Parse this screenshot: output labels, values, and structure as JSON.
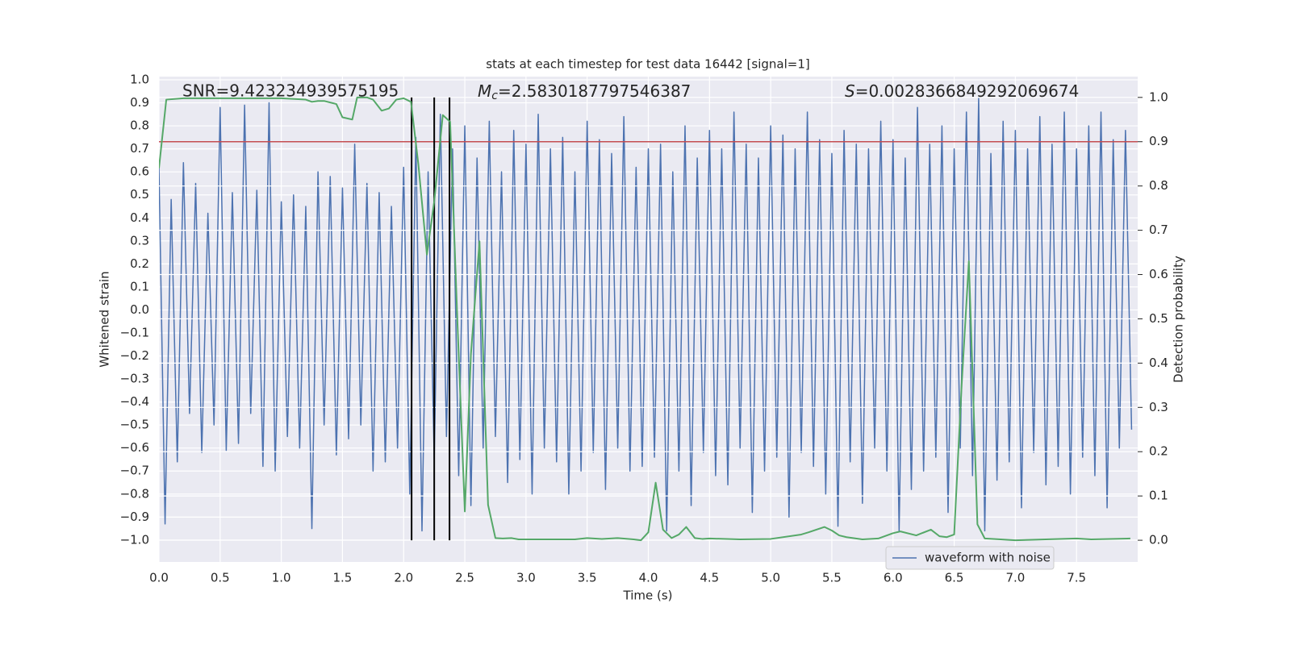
{
  "chart_data": {
    "type": "line",
    "title": "stats at each timestep for test data 16442 [signal=1]",
    "x_label": "Time (s)",
    "y_label": "Whitened strain",
    "y2_label": "Detection probability",
    "snr_annotation": "SNR=9.423234939575195",
    "mc_annotation": {
      "symbol": "M",
      "subscript": "c",
      "text": "=2.5830187797546387"
    },
    "s_annotation": {
      "symbol": "S",
      "text": "=0.0028366849292069674"
    },
    "xlim": [
      0,
      8.0
    ],
    "ylim": [
      -1.095,
      1.014
    ],
    "y2lim": [
      -0.049,
      1.047
    ],
    "grid": true,
    "background": "#eaeaf2",
    "legend_position": "lower right",
    "xticks": [
      {
        "value": 0,
        "label": "0.0"
      },
      {
        "value": 0.5,
        "label": "0.5"
      },
      {
        "value": 1,
        "label": "1.0"
      },
      {
        "value": 1.5,
        "label": "1.5"
      },
      {
        "value": 2,
        "label": "2.0"
      },
      {
        "value": 2.5,
        "label": "2.5"
      },
      {
        "value": 3,
        "label": "3.0"
      },
      {
        "value": 3.5,
        "label": "3.5"
      },
      {
        "value": 4,
        "label": "4.0"
      },
      {
        "value": 4.5,
        "label": "4.5"
      },
      {
        "value": 5,
        "label": "5.0"
      },
      {
        "value": 5.5,
        "label": "5.5"
      },
      {
        "value": 6,
        "label": "6.0"
      },
      {
        "value": 6.5,
        "label": "6.5"
      },
      {
        "value": 7,
        "label": "7.0"
      },
      {
        "value": 7.5,
        "label": "7.5"
      }
    ],
    "yticks": [
      {
        "value": 1,
        "label": "1.0"
      },
      {
        "value": 0.9,
        "label": "0.9"
      },
      {
        "value": 0.8,
        "label": "0.8"
      },
      {
        "value": 0.7,
        "label": "0.7"
      },
      {
        "value": 0.6,
        "label": "0.6"
      },
      {
        "value": 0.5,
        "label": "0.5"
      },
      {
        "value": 0.4,
        "label": "0.4"
      },
      {
        "value": 0.3,
        "label": "0.3"
      },
      {
        "value": 0.2,
        "label": "0.2"
      },
      {
        "value": 0.1,
        "label": "0.1"
      },
      {
        "value": 0,
        "label": "0.0"
      },
      {
        "value": -0.1,
        "label": "−0.1"
      },
      {
        "value": -0.2,
        "label": "−0.2"
      },
      {
        "value": -0.3,
        "label": "−0.3"
      },
      {
        "value": -0.4,
        "label": "−0.4"
      },
      {
        "value": -0.5,
        "label": "−0.5"
      },
      {
        "value": -0.6,
        "label": "−0.6"
      },
      {
        "value": -0.7,
        "label": "−0.7"
      },
      {
        "value": -0.8,
        "label": "−0.8"
      },
      {
        "value": -0.9,
        "label": "−0.9"
      },
      {
        "value": -1,
        "label": "−1.0"
      }
    ],
    "y2ticks": [
      {
        "value": 0,
        "label": "0.0"
      },
      {
        "value": 0.1,
        "label": "0.1"
      },
      {
        "value": 0.2,
        "label": "0.2"
      },
      {
        "value": 0.3,
        "label": "0.3"
      },
      {
        "value": 0.4,
        "label": "0.4"
      },
      {
        "value": 0.5,
        "label": "0.5"
      },
      {
        "value": 0.6,
        "label": "0.6"
      },
      {
        "value": 0.7,
        "label": "0.7"
      },
      {
        "value": 0.8,
        "label": "0.8"
      },
      {
        "value": 0.9,
        "label": "0.9"
      },
      {
        "value": 1,
        "label": "1.0"
      }
    ],
    "hlines": [
      {
        "value": 0.9,
        "axis": "y2",
        "color": "#c44e52"
      }
    ],
    "vlines": {
      "values": [
        2.065,
        2.25,
        2.375
      ],
      "color": "#000000"
    },
    "series": [
      {
        "name": "waveform with noise",
        "color": "#4c72b0",
        "x": [
          0,
          0.05,
          0.1,
          0.15,
          0.2,
          0.25,
          0.3,
          0.35,
          0.4,
          0.45,
          0.5,
          0.55,
          0.6,
          0.65,
          0.7,
          0.75,
          0.8,
          0.85,
          0.9,
          0.95,
          1,
          1.05,
          1.1,
          1.15,
          1.2,
          1.25,
          1.3,
          1.35,
          1.4,
          1.45,
          1.5,
          1.55,
          1.6,
          1.65,
          1.7,
          1.75,
          1.8,
          1.85,
          1.9,
          1.95,
          2,
          2.05,
          2.1,
          2.15,
          2.2,
          2.25,
          2.3,
          2.35,
          2.4,
          2.45,
          2.5,
          2.55,
          2.6,
          2.65,
          2.7,
          2.75,
          2.8,
          2.85,
          2.9,
          2.95,
          3,
          3.05,
          3.1,
          3.15,
          3.2,
          3.25,
          3.3,
          3.35,
          3.4,
          3.45,
          3.5,
          3.55,
          3.6,
          3.65,
          3.7,
          3.75,
          3.8,
          3.85,
          3.9,
          3.95,
          4,
          4.05,
          4.1,
          4.15,
          4.2,
          4.25,
          4.3,
          4.35,
          4.4,
          4.45,
          4.5,
          4.55,
          4.6,
          4.65,
          4.7,
          4.75,
          4.8,
          4.85,
          4.9,
          4.95,
          5,
          5.05,
          5.1,
          5.15,
          5.2,
          5.25,
          5.3,
          5.35,
          5.4,
          5.45,
          5.5,
          5.55,
          5.6,
          5.65,
          5.7,
          5.75,
          5.8,
          5.85,
          5.9,
          5.95,
          6,
          6.05,
          6.1,
          6.15,
          6.2,
          6.25,
          6.3,
          6.35,
          6.4,
          6.45,
          6.5,
          6.55,
          6.6,
          6.65,
          6.7,
          6.75,
          6.8,
          6.85,
          6.9,
          6.95,
          7,
          7.05,
          7.1,
          7.15,
          7.2,
          7.25,
          7.3,
          7.35,
          7.4,
          7.45,
          7.5,
          7.55,
          7.6,
          7.65,
          7.7,
          7.75,
          7.8,
          7.85,
          7.9,
          7.95
        ],
        "values": [
          0.62,
          -0.93,
          0.48,
          -0.66,
          0.64,
          -0.45,
          0.55,
          -0.62,
          0.42,
          -0.5,
          0.88,
          -0.61,
          0.51,
          -0.58,
          0.89,
          -0.45,
          0.52,
          -0.68,
          0.9,
          -0.7,
          0.47,
          -0.55,
          0.5,
          -0.6,
          0.45,
          -0.95,
          0.6,
          -0.5,
          0.58,
          -0.63,
          0.53,
          -0.56,
          0.72,
          -0.5,
          0.55,
          -0.7,
          0.51,
          -0.66,
          0.45,
          -0.6,
          0.62,
          -0.8,
          0.75,
          -0.96,
          0.6,
          -0.65,
          0.85,
          -0.55,
          0.7,
          -0.72,
          0.8,
          -0.85,
          0.66,
          -0.6,
          0.82,
          -0.55,
          0.6,
          -0.75,
          0.78,
          -0.65,
          0.72,
          -0.8,
          0.85,
          -0.6,
          0.7,
          -0.66,
          0.75,
          -0.8,
          0.6,
          -0.7,
          0.82,
          -0.62,
          0.74,
          -0.78,
          0.68,
          -0.6,
          0.84,
          -0.7,
          0.62,
          -0.68,
          0.7,
          -0.64,
          0.72,
          -0.96,
          0.6,
          -0.7,
          0.8,
          -0.85,
          0.66,
          -0.62,
          0.78,
          -0.72,
          0.7,
          -0.76,
          0.86,
          -0.6,
          0.72,
          -0.88,
          0.66,
          -0.7,
          0.8,
          -0.64,
          0.76,
          -0.9,
          0.7,
          -0.62,
          0.86,
          -0.68,
          0.74,
          -0.8,
          0.68,
          -0.94,
          0.78,
          -0.66,
          0.72,
          -0.84,
          0.7,
          -0.6,
          0.82,
          -0.7,
          0.74,
          -0.96,
          0.66,
          -0.78,
          0.88,
          -0.7,
          0.72,
          -0.64,
          0.8,
          -0.88,
          0.7,
          -0.6,
          0.86,
          -0.72,
          0.92,
          -0.96,
          0.68,
          -0.74,
          0.82,
          -0.66,
          0.78,
          -0.86,
          0.7,
          -0.62,
          0.84,
          -0.76,
          0.72,
          -0.68,
          0.86,
          -0.8,
          0.7,
          -0.64,
          0.8,
          -0.72,
          0.86,
          -0.86,
          0.74,
          -0.6,
          0.78,
          -0.52
        ]
      },
      {
        "color": "#55a868",
        "axis": "y2",
        "x": [
          0,
          0.06,
          0.2,
          0.5,
          1.0,
          1.2,
          1.25,
          1.3,
          1.35,
          1.45,
          1.5,
          1.58,
          1.62,
          1.7,
          1.75,
          1.82,
          1.88,
          1.94,
          2.0,
          2.06,
          2.12,
          2.19,
          2.25,
          2.32,
          2.38,
          2.44,
          2.5,
          2.55,
          2.62,
          2.69,
          2.75,
          2.81,
          2.88,
          2.94,
          3.4,
          3.5,
          3.62,
          3.75,
          3.88,
          3.94,
          4.0,
          4.06,
          4.12,
          4.19,
          4.25,
          4.31,
          4.38,
          4.44,
          4.5,
          4.75,
          5.0,
          5.25,
          5.31,
          5.44,
          5.5,
          5.56,
          5.62,
          5.75,
          5.88,
          6.0,
          6.06,
          6.19,
          6.31,
          6.38,
          6.44,
          6.5,
          6.56,
          6.62,
          6.69,
          6.75,
          6.88,
          7.0,
          7.5,
          7.62,
          7.94
        ],
        "values": [
          0.84,
          0.995,
          0.998,
          0.998,
          0.998,
          0.995,
          0.99,
          0.992,
          0.992,
          0.985,
          0.955,
          0.95,
          1.0,
          1.0,
          0.995,
          0.97,
          0.975,
          0.995,
          0.998,
          0.99,
          0.85,
          0.645,
          0.765,
          0.96,
          0.945,
          0.49,
          0.065,
          0.42,
          0.675,
          0.08,
          0.005,
          0.004,
          0.005,
          0.002,
          0.002,
          0.005,
          0.003,
          0.005,
          0.002,
          0.0,
          0.018,
          0.13,
          0.024,
          0.005,
          0.013,
          0.03,
          0.005,
          0.003,
          0.004,
          0.002,
          0.003,
          0.013,
          0.018,
          0.03,
          0.022,
          0.011,
          0.007,
          0.002,
          0.004,
          0.016,
          0.02,
          0.011,
          0.024,
          0.009,
          0.007,
          0.013,
          0.345,
          0.63,
          0.036,
          0.004,
          0.002,
          0.0,
          0.004,
          0.002,
          0.004
        ]
      }
    ]
  }
}
